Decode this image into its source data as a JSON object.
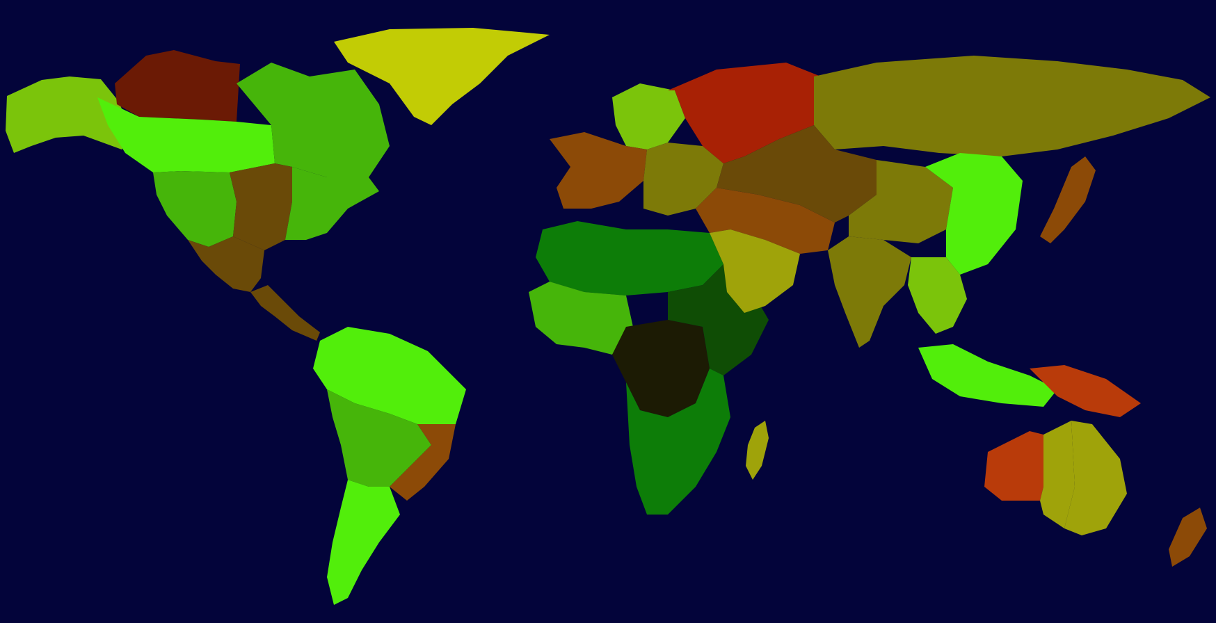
{
  "map": {
    "background_color": "#03043a",
    "colors": {
      "dark_red": "#6b1a05",
      "red": "#a82105",
      "red_orange": "#b93b0a",
      "orange_brown": "#8c4a07",
      "brown": "#6a4a08",
      "olive": "#7d7a08",
      "olive_yellow": "#9fa30a",
      "yellow_green": "#c2cc05",
      "lime": "#7bc40b",
      "green": "#46b50a",
      "bright_green": "#52ee0b",
      "dark_green": "#0f4d05",
      "very_dark": "#1c1b04",
      "forest": "#0d7d08"
    },
    "regions": [
      {
        "name": "alaska",
        "color": "lime"
      },
      {
        "name": "canada-north",
        "color": "dark_red"
      },
      {
        "name": "canada-west",
        "color": "bright_green"
      },
      {
        "name": "canada-east",
        "color": "green"
      },
      {
        "name": "greenland",
        "color": "yellow_green"
      },
      {
        "name": "usa-west",
        "color": "green"
      },
      {
        "name": "usa-central",
        "color": "brown"
      },
      {
        "name": "usa-east",
        "color": "green"
      },
      {
        "name": "mexico",
        "color": "brown"
      },
      {
        "name": "central-america",
        "color": "brown"
      },
      {
        "name": "south-america-north",
        "color": "bright_green"
      },
      {
        "name": "south-america-central",
        "color": "green"
      },
      {
        "name": "brazil-south",
        "color": "orange_brown"
      },
      {
        "name": "argentina",
        "color": "bright_green"
      },
      {
        "name": "scandinavia",
        "color": "lime"
      },
      {
        "name": "western-europe",
        "color": "orange_brown"
      },
      {
        "name": "eastern-europe",
        "color": "olive"
      },
      {
        "name": "russia-west",
        "color": "red"
      },
      {
        "name": "russia-east",
        "color": "olive"
      },
      {
        "name": "north-africa",
        "color": "forest"
      },
      {
        "name": "west-africa",
        "color": "green"
      },
      {
        "name": "central-africa",
        "color": "very_dark"
      },
      {
        "name": "east-africa",
        "color": "dark_green"
      },
      {
        "name": "southern-africa",
        "color": "forest"
      },
      {
        "name": "madagascar",
        "color": "olive_yellow"
      },
      {
        "name": "middle-east",
        "color": "orange_brown"
      },
      {
        "name": "arabia",
        "color": "olive_yellow"
      },
      {
        "name": "central-asia",
        "color": "brown"
      },
      {
        "name": "india",
        "color": "olive"
      },
      {
        "name": "china-west",
        "color": "olive"
      },
      {
        "name": "china-east",
        "color": "bright_green"
      },
      {
        "name": "southeast-asia",
        "color": "lime"
      },
      {
        "name": "japan",
        "color": "orange_brown"
      },
      {
        "name": "indonesia",
        "color": "bright_green"
      },
      {
        "name": "papua",
        "color": "red_orange"
      },
      {
        "name": "australia-west",
        "color": "red_orange"
      },
      {
        "name": "australia-central",
        "color": "olive_yellow"
      },
      {
        "name": "australia-east",
        "color": "olive_yellow"
      },
      {
        "name": "new-zealand",
        "color": "orange_brown"
      }
    ]
  }
}
